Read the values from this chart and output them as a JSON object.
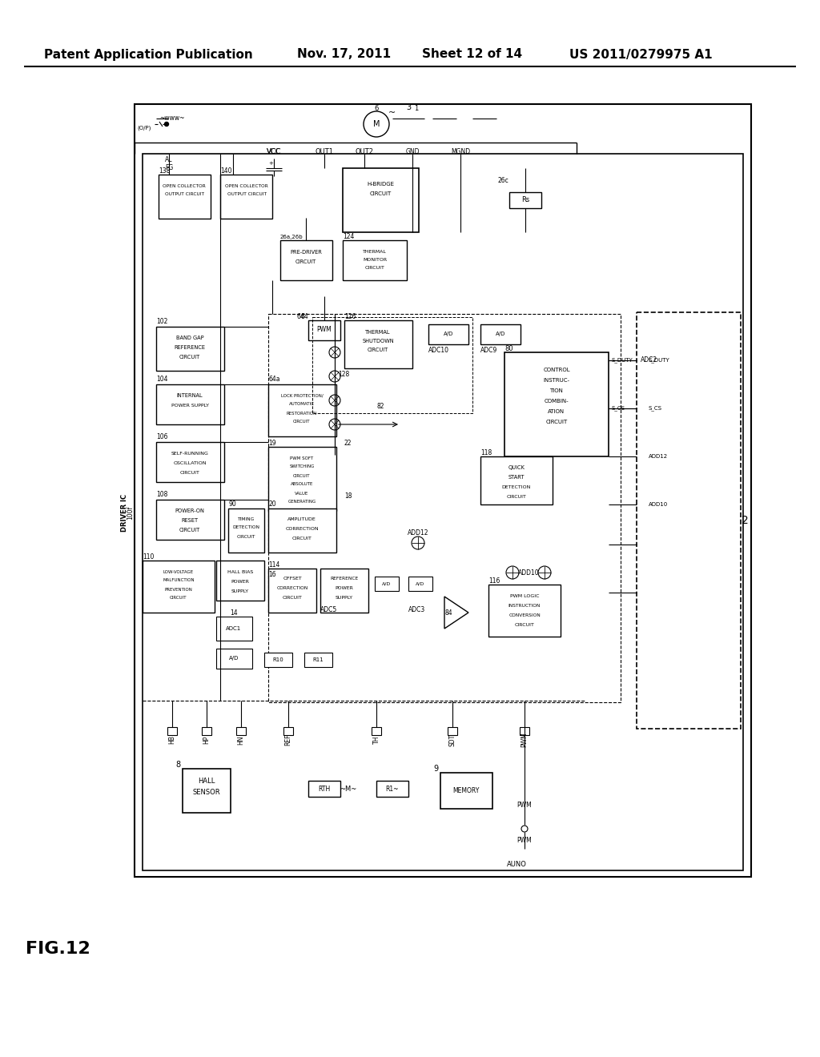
{
  "bg_color": "#ffffff",
  "header_title": "Patent Application Publication",
  "header_date": "Nov. 17, 2011",
  "header_sheet": "Sheet 12 of 14",
  "header_patent": "US 2011/0279975 A1",
  "fig_label": "FIG.12"
}
